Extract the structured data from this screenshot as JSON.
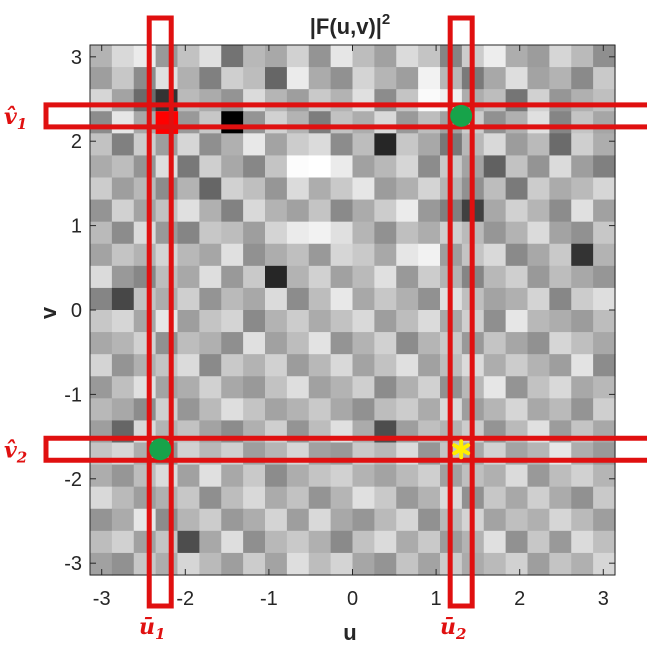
{
  "chart_data": {
    "type": "heatmap",
    "title": "|F(u,v)|",
    "title_superscript": "2",
    "xlabel": "u",
    "ylabel": "v",
    "xlim": [
      -3.14,
      3.14
    ],
    "ylim": [
      -3.14,
      3.14
    ],
    "xticks": [
      -3,
      -2,
      -1,
      0,
      1,
      2,
      3
    ],
    "yticks": [
      -3,
      -2,
      -1,
      0,
      1,
      2,
      3
    ],
    "colormap": "gray",
    "grid_size": [
      24,
      24
    ],
    "cells": [
      [
        0.7,
        0.85,
        0.92,
        0.6,
        0.76,
        0.88,
        0.45,
        0.72,
        0.66,
        0.82,
        0.58,
        0.9,
        0.74,
        0.63,
        0.86,
        0.77,
        0.52,
        0.8,
        0.93,
        0.68,
        0.61,
        0.84,
        0.73,
        0.56
      ],
      [
        0.62,
        0.78,
        0.55,
        0.88,
        0.69,
        0.5,
        0.81,
        0.74,
        0.4,
        0.92,
        0.67,
        0.57,
        0.83,
        0.71,
        0.62,
        0.95,
        0.72,
        0.48,
        0.66,
        0.87,
        0.64,
        0.7,
        0.54,
        0.79
      ],
      [
        0.84,
        0.64,
        0.42,
        0.2,
        0.73,
        0.67,
        0.58,
        0.86,
        0.71,
        0.62,
        0.79,
        0.7,
        0.88,
        0.55,
        0.77,
        0.98,
        0.94,
        0.68,
        0.74,
        0.46,
        0.82,
        0.59,
        0.69,
        0.75
      ],
      [
        0.55,
        0.9,
        0.66,
        0.72,
        0.6,
        0.78,
        0.0,
        0.58,
        0.82,
        0.7,
        0.49,
        0.76,
        0.68,
        0.85,
        0.6,
        0.74,
        0.63,
        0.8,
        0.57,
        0.69,
        0.88,
        0.52,
        0.77,
        0.65
      ],
      [
        0.76,
        0.5,
        0.8,
        0.62,
        0.84,
        0.56,
        0.69,
        0.91,
        0.64,
        0.8,
        0.86,
        0.55,
        0.74,
        0.15,
        0.78,
        0.66,
        0.47,
        0.72,
        0.85,
        0.61,
        0.73,
        0.42,
        0.81,
        0.68
      ],
      [
        0.67,
        0.74,
        0.58,
        0.87,
        0.47,
        0.81,
        0.66,
        0.53,
        0.77,
        0.99,
        1.0,
        0.92,
        0.63,
        0.72,
        0.84,
        0.55,
        0.79,
        0.64,
        0.38,
        0.76,
        0.58,
        0.86,
        0.62,
        0.5
      ],
      [
        0.8,
        0.62,
        0.72,
        0.55,
        0.7,
        0.4,
        0.82,
        0.75,
        0.59,
        0.86,
        0.68,
        0.79,
        0.9,
        0.61,
        0.69,
        0.83,
        0.71,
        0.57,
        0.74,
        0.48,
        0.8,
        0.67,
        0.73,
        0.84
      ],
      [
        0.58,
        0.82,
        0.64,
        0.76,
        0.88,
        0.69,
        0.51,
        0.85,
        0.7,
        0.63,
        0.77,
        0.54,
        0.67,
        0.8,
        0.92,
        0.6,
        0.5,
        0.25,
        0.66,
        0.82,
        0.71,
        0.55,
        0.88,
        0.63
      ],
      [
        0.73,
        0.55,
        0.86,
        0.6,
        0.52,
        0.78,
        0.74,
        0.62,
        0.83,
        0.92,
        0.95,
        0.88,
        0.71,
        0.57,
        0.75,
        0.68,
        0.81,
        0.73,
        0.59,
        0.7,
        0.86,
        0.64,
        0.57,
        0.78
      ],
      [
        0.64,
        0.77,
        0.7,
        0.83,
        0.72,
        0.65,
        0.88,
        0.57,
        0.68,
        0.75,
        0.6,
        0.84,
        0.79,
        0.66,
        0.9,
        0.95,
        0.62,
        0.77,
        0.85,
        0.54,
        0.66,
        0.79,
        0.2,
        0.7
      ],
      [
        0.86,
        0.6,
        0.53,
        0.74,
        0.66,
        0.87,
        0.6,
        0.79,
        0.15,
        0.7,
        0.82,
        0.63,
        0.73,
        0.88,
        0.6,
        0.8,
        0.7,
        0.52,
        0.72,
        0.81,
        0.6,
        0.74,
        0.66,
        0.59
      ],
      [
        0.52,
        0.28,
        0.76,
        0.68,
        0.81,
        0.58,
        0.73,
        0.66,
        0.86,
        0.55,
        0.74,
        0.91,
        0.66,
        0.78,
        0.69,
        0.57,
        0.88,
        0.75,
        0.64,
        0.69,
        0.83,
        0.53,
        0.8,
        0.87
      ],
      [
        0.78,
        0.84,
        0.65,
        0.9,
        0.62,
        0.77,
        0.83,
        0.54,
        0.7,
        0.8,
        0.67,
        0.76,
        0.85,
        0.62,
        0.74,
        0.86,
        0.66,
        0.81,
        0.56,
        0.9,
        0.72,
        0.68,
        0.61,
        0.74
      ],
      [
        0.66,
        0.71,
        0.82,
        0.57,
        0.74,
        0.69,
        0.56,
        0.88,
        0.63,
        0.74,
        0.89,
        0.58,
        0.7,
        0.82,
        0.55,
        0.71,
        0.79,
        0.6,
        0.77,
        0.65,
        0.57,
        0.84,
        0.75,
        0.66
      ],
      [
        0.83,
        0.58,
        0.69,
        0.77,
        0.86,
        0.54,
        0.79,
        0.7,
        0.82,
        0.61,
        0.72,
        0.85,
        0.64,
        0.76,
        0.88,
        0.63,
        0.74,
        0.86,
        0.68,
        0.8,
        0.7,
        0.62,
        0.89,
        0.55
      ],
      [
        0.6,
        0.75,
        0.88,
        0.64,
        0.68,
        0.82,
        0.66,
        0.6,
        0.76,
        0.87,
        0.63,
        0.7,
        0.81,
        0.55,
        0.69,
        0.82,
        0.57,
        0.72,
        0.9,
        0.58,
        0.76,
        0.85,
        0.66,
        0.72
      ],
      [
        0.72,
        0.66,
        0.55,
        0.81,
        0.59,
        0.73,
        0.87,
        0.77,
        0.64,
        0.7,
        0.79,
        0.66,
        0.57,
        0.74,
        0.8,
        0.67,
        0.85,
        0.62,
        0.71,
        0.84,
        0.66,
        0.73,
        0.58,
        0.81
      ],
      [
        0.62,
        0.4,
        0.85,
        0.7,
        0.76,
        0.64,
        0.55,
        0.69,
        0.81,
        0.58,
        0.74,
        0.88,
        0.67,
        0.3,
        0.62,
        0.75,
        0.7,
        0.8,
        0.58,
        0.73,
        0.88,
        0.61,
        0.77,
        0.66
      ],
      [
        0.77,
        0.84,
        0.68,
        0.58,
        0.82,
        0.72,
        0.81,
        0.62,
        0.71,
        0.84,
        0.63,
        0.6,
        0.79,
        0.72,
        0.86,
        0.59,
        0.77,
        0.66,
        0.82,
        0.64,
        0.71,
        0.9,
        0.68,
        0.6
      ],
      [
        0.68,
        0.59,
        0.74,
        0.86,
        0.63,
        0.88,
        0.66,
        0.79,
        0.55,
        0.68,
        0.77,
        0.82,
        0.7,
        0.64,
        0.73,
        0.81,
        0.63,
        0.75,
        0.69,
        0.86,
        0.6,
        0.74,
        0.82,
        0.71
      ],
      [
        0.85,
        0.73,
        0.62,
        0.69,
        0.78,
        0.56,
        0.74,
        0.85,
        0.67,
        0.76,
        0.58,
        0.71,
        0.88,
        0.79,
        0.6,
        0.7,
        0.86,
        0.57,
        0.78,
        0.66,
        0.81,
        0.67,
        0.57,
        0.79
      ],
      [
        0.58,
        0.67,
        0.9,
        0.55,
        0.71,
        0.8,
        0.6,
        0.68,
        0.83,
        0.62,
        0.85,
        0.66,
        0.59,
        0.73,
        0.84,
        0.57,
        0.72,
        0.83,
        0.64,
        0.75,
        0.69,
        0.84,
        0.73,
        0.62
      ],
      [
        0.74,
        0.82,
        0.63,
        0.77,
        0.3,
        0.66,
        0.87,
        0.56,
        0.72,
        0.79,
        0.69,
        0.54,
        0.76,
        0.86,
        0.67,
        0.79,
        0.61,
        0.7,
        0.88,
        0.57,
        0.78,
        0.6,
        0.86,
        0.75
      ],
      [
        0.63,
        0.57,
        0.78,
        0.68,
        0.84,
        0.73,
        0.62,
        0.8,
        0.64,
        0.87,
        0.74,
        0.83,
        0.65,
        0.58,
        0.77,
        0.64,
        0.8,
        0.67,
        0.73,
        0.82,
        0.62,
        0.77,
        0.69,
        0.84
      ]
    ],
    "red_cell": {
      "u": -2.3,
      "v": 2.3
    },
    "markers": [
      {
        "u": 1.3,
        "v": 2.3,
        "shape": "circle",
        "color": "#17a34a"
      },
      {
        "u": -2.3,
        "v": -1.65,
        "shape": "circle",
        "color": "#17a34a"
      },
      {
        "u": 1.3,
        "v": -1.65,
        "shape": "asterisk",
        "color": "#ffee00"
      }
    ],
    "highlight_bands": [
      {
        "axis": "u",
        "center": -2.3,
        "label": "ū",
        "subscript": "1"
      },
      {
        "axis": "u",
        "center": 1.3,
        "label": "ū",
        "subscript": "2"
      },
      {
        "axis": "v",
        "center": 2.3,
        "label": "v̂",
        "subscript": "1"
      },
      {
        "axis": "v",
        "center": -1.65,
        "label": "v̂",
        "subscript": "2"
      }
    ],
    "grid": false
  },
  "colors": {
    "highlight": "#e01010",
    "marker_green": "#17a34a",
    "marker_yellow": "#ffee00",
    "axis": "#262626"
  }
}
